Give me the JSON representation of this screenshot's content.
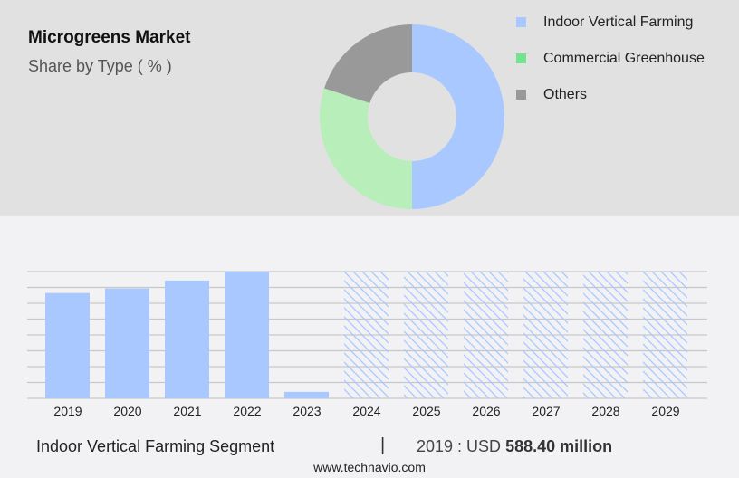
{
  "header": {
    "title": "Microgreens Market",
    "subtitle": "Share by Type ( % )"
  },
  "colors": {
    "indoor": "#a8c8ff",
    "commercial": "#b7eeba",
    "commercial_legend": "#74e38f",
    "others": "#999999",
    "gridline": "#c8c8c8",
    "top_bg": "#e1e1e1",
    "bottom_bg": "#f2f2f4"
  },
  "legend": [
    {
      "label": "Indoor Vertical Farming",
      "color": "#a8c8ff"
    },
    {
      "label": "Commercial Greenhouse",
      "color": "#74e38f"
    },
    {
      "label": "Others",
      "color": "#999999"
    }
  ],
  "footer": {
    "segment": "Indoor Vertical Farming Segment",
    "separator": "|",
    "year_prefix": "2019 : USD ",
    "value": "588.40 million",
    "url": "www.technavio.com"
  },
  "chart_data": [
    {
      "type": "pie",
      "title": "Microgreens Market",
      "subtitle": "Share by Type ( % )",
      "donut": true,
      "categories": [
        "Indoor Vertical Farming",
        "Commercial Greenhouse",
        "Others"
      ],
      "values": [
        50,
        30,
        20
      ],
      "colors": [
        "#a8c8ff",
        "#b7eeba",
        "#999999"
      ],
      "legend_position": "right"
    },
    {
      "type": "bar",
      "title": "Indoor Vertical Farming Segment",
      "categories": [
        "2019",
        "2020",
        "2021",
        "2022",
        "2023",
        "2024",
        "2025",
        "2026",
        "2027",
        "2028",
        "2029"
      ],
      "values": [
        588.4,
        614,
        658,
        708,
        36,
        null,
        null,
        null,
        null,
        null,
        null
      ],
      "forecast": [
        false,
        false,
        false,
        false,
        false,
        true,
        true,
        true,
        true,
        true,
        true
      ],
      "annotation": "2019 : USD 588.40 million",
      "xlabel": "",
      "ylabel": "",
      "ylim": [
        0,
        708
      ],
      "grid": true,
      "gridlines": 8
    }
  ]
}
